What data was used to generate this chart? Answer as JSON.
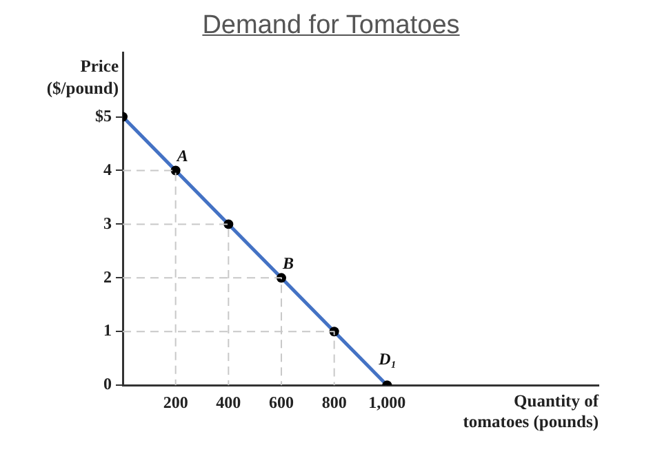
{
  "chart_data": {
    "type": "line",
    "title": "Demand for Tomatoes",
    "xlabel": "Quantity of tomatoes (pounds)",
    "ylabel": "Price ($/pound)",
    "x": [
      0,
      200,
      400,
      600,
      800,
      1000
    ],
    "series": [
      {
        "color": "#4472c4",
        "values": [
          5,
          4,
          3,
          2,
          1,
          0
        ]
      },
      {
        "color": "#c8c8c8",
        "line_style": "dashed",
        "marker": "none",
        "x": [
          0,
          200,
          200
        ],
        "values": [
          4,
          4,
          0
        ]
      },
      {
        "color": "#c8c8c8",
        "line_style": "dashed",
        "marker": "none",
        "x": [
          0,
          400,
          400
        ],
        "values": [
          3,
          3,
          0
        ]
      },
      {
        "color": "#c8c8c8",
        "line_style": "dashed",
        "marker": "none",
        "x": [
          0,
          600,
          600
        ],
        "values": [
          2,
          2,
          0
        ]
      },
      {
        "color": "#c8c8c8",
        "line_style": "dashed",
        "marker": "none",
        "x": [
          0,
          800,
          800
        ],
        "values": [
          1,
          1,
          0
        ]
      }
    ],
    "xlim": [
      0,
      1800
    ],
    "xticks": [
      200,
      400,
      600,
      800,
      {
        "value": 1000,
        "label": "1,000"
      }
    ],
    "ylim": [
      0,
      6.2
    ],
    "yticks": [
      0,
      1,
      2,
      3,
      4,
      {
        "value": 5,
        "label": "$5"
      }
    ],
    "annotations": [
      {
        "text": "A",
        "x": 200,
        "y": 4
      },
      {
        "text": "B",
        "x": 600,
        "y": 2
      },
      {
        "text": "D₁",
        "x": 1000,
        "y": 0
      }
    ],
    "marker": "circle",
    "line_style": "solid",
    "legend": false
  }
}
